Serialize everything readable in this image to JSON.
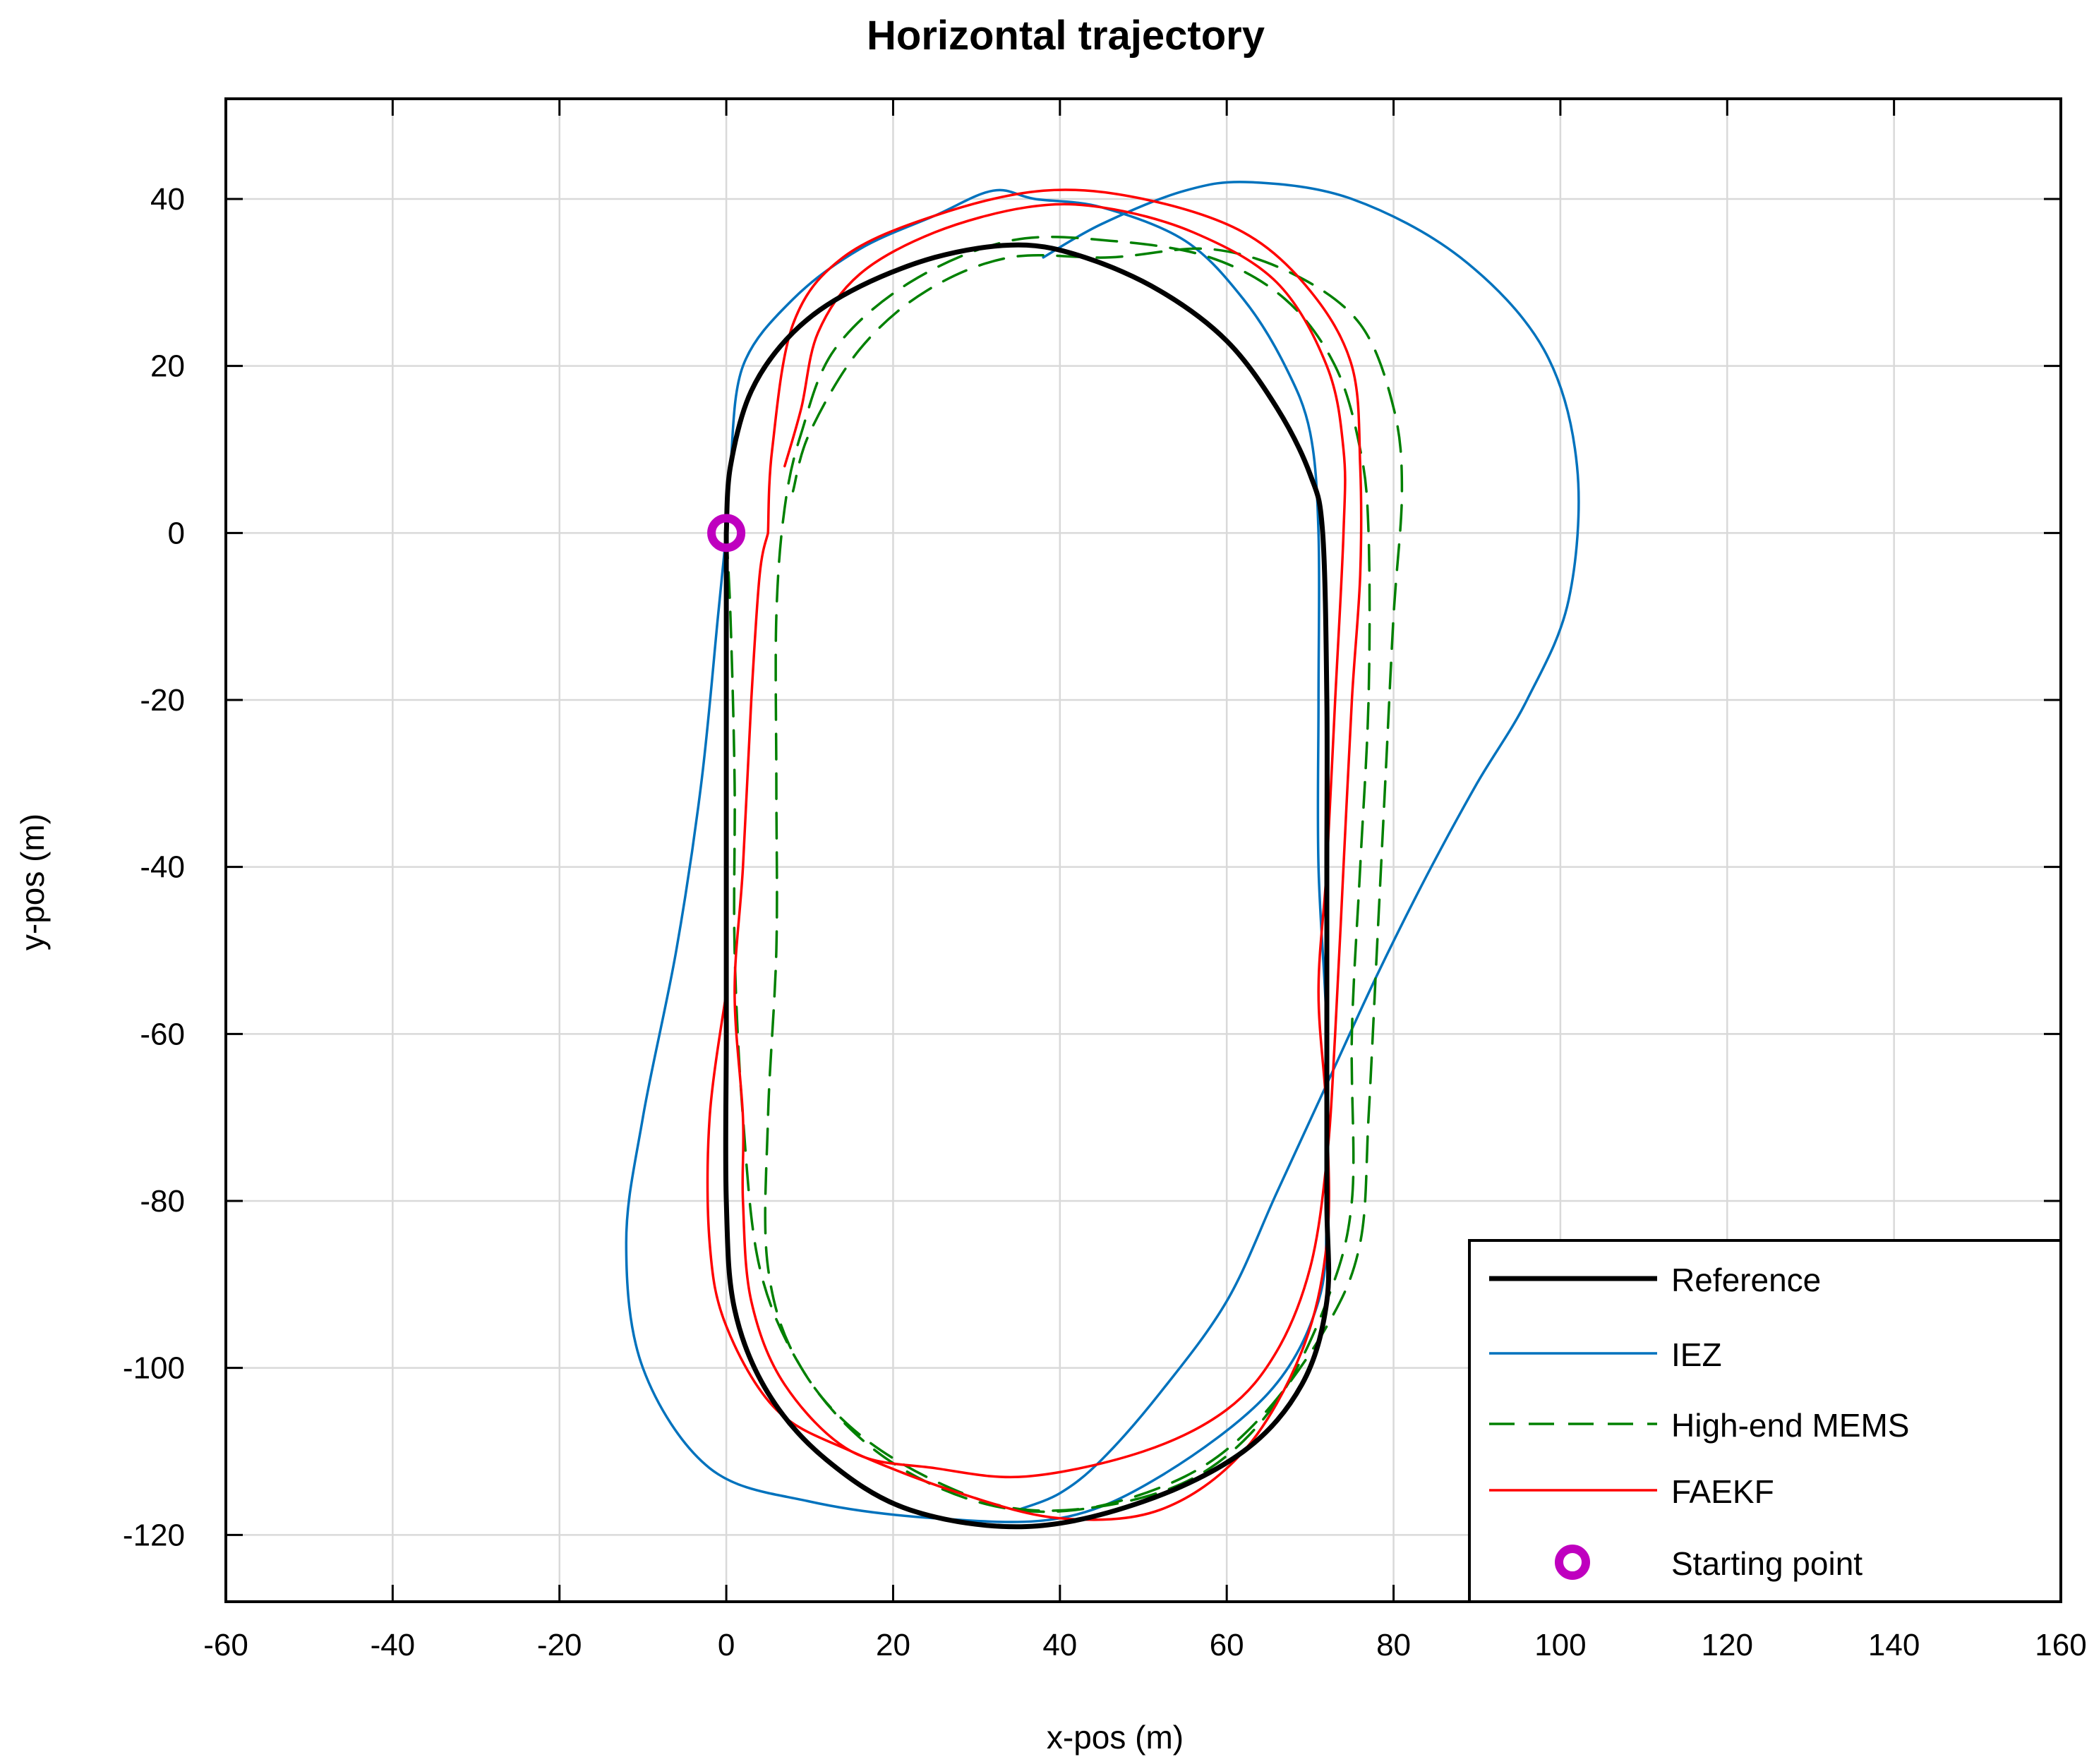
{
  "chart_data": {
    "type": "line",
    "title": "Horizontal trajectory",
    "xlabel": "x-pos (m)",
    "ylabel": "y-pos (m)",
    "xlim": [
      -60,
      160
    ],
    "ylim": [
      -128,
      52
    ],
    "xticks": [
      -60,
      -40,
      -20,
      0,
      20,
      40,
      60,
      80,
      100,
      120,
      140,
      160
    ],
    "yticks": [
      -120,
      -100,
      -80,
      -60,
      -40,
      -20,
      0,
      20,
      40
    ],
    "grid": true,
    "legend_position": "bottom-right",
    "series": [
      {
        "name": "Reference",
        "color": "#000000",
        "style": "solid-thick",
        "points": [
          [
            0,
            0
          ],
          [
            0.5,
            8
          ],
          [
            3,
            17
          ],
          [
            8,
            24
          ],
          [
            15,
            29
          ],
          [
            25,
            33
          ],
          [
            35,
            34.5
          ],
          [
            43,
            33
          ],
          [
            52,
            29
          ],
          [
            60,
            23
          ],
          [
            66,
            15
          ],
          [
            70,
            7
          ],
          [
            71.5,
            0
          ],
          [
            72,
            -20
          ],
          [
            72,
            -40
          ],
          [
            72,
            -60
          ],
          [
            72,
            -80
          ],
          [
            72,
            -92
          ],
          [
            69,
            -102
          ],
          [
            62,
            -110
          ],
          [
            50,
            -116
          ],
          [
            36,
            -119
          ],
          [
            22,
            -117
          ],
          [
            12,
            -111
          ],
          [
            5,
            -103
          ],
          [
            1,
            -93
          ],
          [
            0,
            -80
          ],
          [
            0,
            -60
          ],
          [
            0,
            -40
          ],
          [
            0,
            -20
          ],
          [
            0,
            0
          ]
        ]
      },
      {
        "name": "IEZ",
        "color": "#0072BD",
        "style": "solid",
        "points": [
          [
            0,
            0
          ],
          [
            0.5,
            8
          ],
          [
            2,
            20
          ],
          [
            8,
            28
          ],
          [
            16,
            34
          ],
          [
            25,
            38
          ],
          [
            32,
            41
          ],
          [
            37,
            40
          ],
          [
            45,
            39
          ],
          [
            55,
            35
          ],
          [
            62,
            28
          ],
          [
            67,
            20
          ],
          [
            70,
            12
          ],
          [
            71,
            0
          ],
          [
            71,
            -20
          ],
          [
            71,
            -40
          ],
          [
            72,
            -60
          ],
          [
            72,
            -80
          ],
          [
            71,
            -92
          ],
          [
            65,
            -103
          ],
          [
            52,
            -113
          ],
          [
            40,
            -118
          ],
          [
            25,
            -118
          ],
          [
            10,
            -116
          ],
          [
            -2,
            -112
          ],
          [
            -10,
            -100
          ],
          [
            -12,
            -85
          ],
          [
            -10,
            -70
          ],
          [
            -6,
            -50
          ],
          [
            -3,
            -30
          ],
          [
            -1,
            -10
          ],
          [
            0,
            0
          ]
        ],
        "extra_path": [
          [
            38,
            33
          ],
          [
            45,
            37
          ],
          [
            55,
            41
          ],
          [
            63,
            42
          ],
          [
            75,
            40
          ],
          [
            88,
            33
          ],
          [
            98,
            22
          ],
          [
            102,
            8
          ],
          [
            101,
            -8
          ],
          [
            96,
            -20
          ],
          [
            90,
            -30
          ],
          [
            84,
            -41
          ],
          [
            78,
            -53
          ],
          [
            72,
            -66
          ],
          [
            66,
            -79
          ],
          [
            60,
            -92
          ],
          [
            52,
            -103
          ],
          [
            45,
            -111
          ],
          [
            40,
            -115
          ],
          [
            35,
            -117
          ]
        ]
      },
      {
        "name": "High-end MEMS",
        "color": "#008000",
        "style": "dashed",
        "points": [
          [
            0,
            0
          ],
          [
            0.5,
            -10
          ],
          [
            1,
            -30
          ],
          [
            1,
            -50
          ],
          [
            2,
            -70
          ],
          [
            4,
            -88
          ],
          [
            9,
            -100
          ],
          [
            16,
            -108
          ],
          [
            26,
            -114
          ],
          [
            36,
            -117
          ],
          [
            48,
            -116
          ],
          [
            58,
            -112
          ],
          [
            66,
            -104
          ],
          [
            72,
            -92
          ],
          [
            75,
            -80
          ],
          [
            75,
            -60
          ],
          [
            76,
            -40
          ],
          [
            77,
            -20
          ],
          [
            77,
            0
          ],
          [
            76,
            10
          ],
          [
            73,
            20
          ],
          [
            67,
            28
          ],
          [
            58,
            33
          ],
          [
            46,
            35
          ],
          [
            34,
            35
          ],
          [
            22,
            30
          ],
          [
            13,
            22
          ],
          [
            9,
            12
          ],
          [
            7,
            3
          ],
          [
            6,
            -10
          ],
          [
            6,
            -30
          ],
          [
            6,
            -50
          ],
          [
            5,
            -70
          ],
          [
            5,
            -88
          ],
          [
            9,
            -100
          ],
          [
            18,
            -110
          ],
          [
            30,
            -116
          ],
          [
            42,
            -117
          ],
          [
            55,
            -113
          ],
          [
            64,
            -106
          ],
          [
            72,
            -95
          ],
          [
            76,
            -85
          ],
          [
            77,
            -70
          ],
          [
            78,
            -50
          ],
          [
            79,
            -30
          ],
          [
            80,
            -10
          ],
          [
            81,
            5
          ],
          [
            80,
            15
          ],
          [
            76,
            25
          ],
          [
            68,
            31
          ],
          [
            58,
            34
          ],
          [
            46,
            33
          ],
          [
            34,
            33
          ],
          [
            24,
            29
          ],
          [
            16,
            22
          ],
          [
            10,
            12
          ],
          [
            8,
            5
          ]
        ]
      },
      {
        "name": "FAEKF",
        "color": "#FF0000",
        "style": "solid",
        "points": [
          [
            5,
            0
          ],
          [
            5.5,
            10
          ],
          [
            8,
            25
          ],
          [
            14,
            33
          ],
          [
            25,
            38
          ],
          [
            38,
            41
          ],
          [
            50,
            40
          ],
          [
            62,
            36
          ],
          [
            70,
            29
          ],
          [
            75,
            20
          ],
          [
            76,
            8
          ],
          [
            76,
            -5
          ],
          [
            75,
            -20
          ],
          [
            74,
            -40
          ],
          [
            73,
            -60
          ],
          [
            72,
            -75
          ],
          [
            70,
            -88
          ],
          [
            66,
            -98
          ],
          [
            60,
            -105
          ],
          [
            50,
            -110
          ],
          [
            36,
            -113
          ],
          [
            25,
            -112
          ],
          [
            15,
            -110
          ],
          [
            7,
            -102
          ],
          [
            3,
            -92
          ],
          [
            2,
            -80
          ],
          [
            2,
            -70
          ],
          [
            1,
            -55
          ],
          [
            2,
            -40
          ],
          [
            3,
            -20
          ],
          [
            4,
            -5
          ],
          [
            5,
            0
          ]
        ],
        "extra_path": [
          [
            0,
            -55
          ],
          [
            -2,
            -70
          ],
          [
            -2,
            -85
          ],
          [
            0,
            -95
          ],
          [
            6,
            -105
          ],
          [
            15,
            -110
          ],
          [
            28,
            -115
          ],
          [
            40,
            -118
          ],
          [
            52,
            -117
          ],
          [
            62,
            -110
          ],
          [
            69,
            -98
          ],
          [
            72,
            -85
          ],
          [
            72,
            -70
          ],
          [
            71,
            -55
          ],
          [
            72,
            -40
          ],
          [
            73,
            -20
          ],
          [
            74,
            0
          ],
          [
            74,
            10
          ],
          [
            72,
            20
          ],
          [
            66,
            30
          ],
          [
            56,
            36
          ],
          [
            45,
            39
          ],
          [
            36,
            39
          ],
          [
            25,
            36
          ],
          [
            16,
            31
          ],
          [
            11,
            24
          ],
          [
            9,
            15
          ],
          [
            7,
            8
          ]
        ]
      }
    ],
    "starting_point": {
      "x": 0,
      "y": 0,
      "color": "#BF00BF"
    },
    "legend": [
      "Reference",
      "IEZ",
      "High-end MEMS",
      "FAEKF",
      "Starting point"
    ]
  }
}
